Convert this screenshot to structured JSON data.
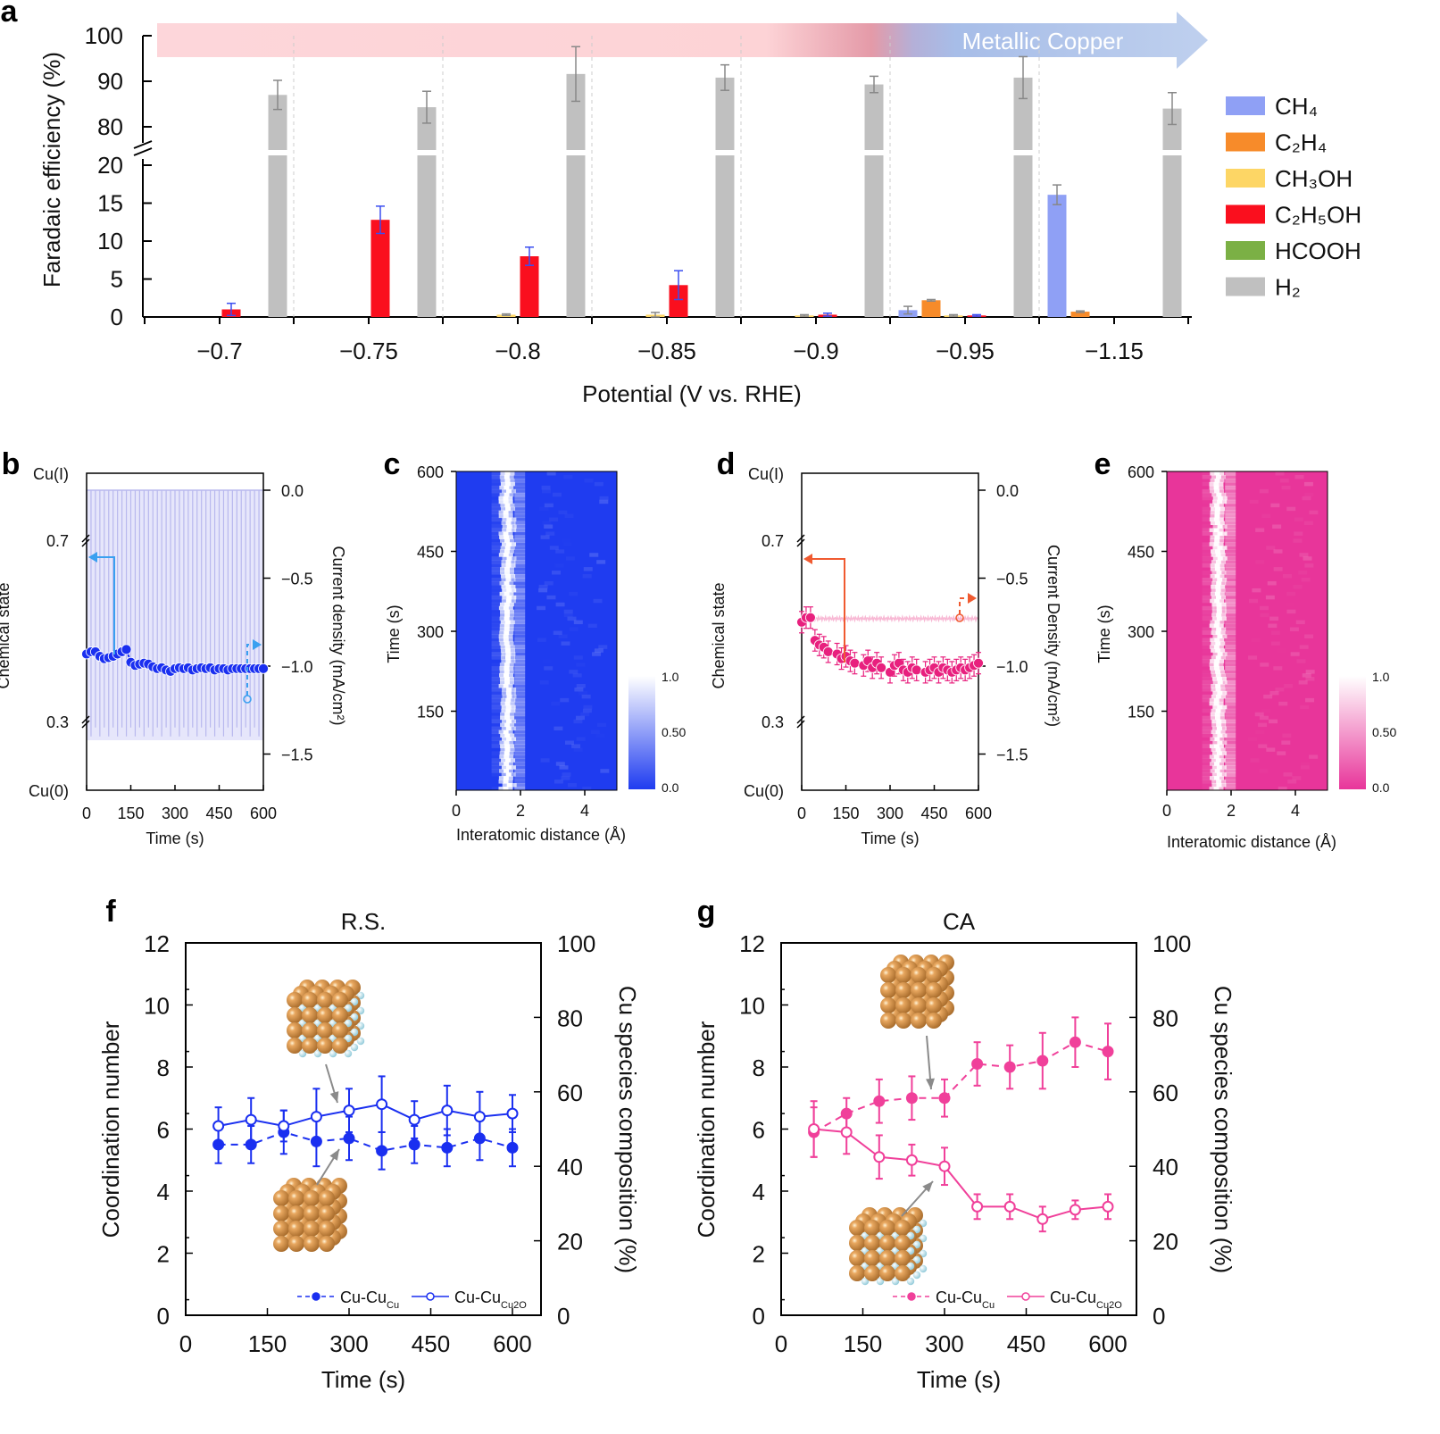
{
  "chart_data": [
    {
      "panel": "a",
      "type": "bar",
      "banner": "Metallic Copper",
      "xlabel": "Potential (V vs. RHE)",
      "ylabel": "Faradaic efficiency (%)",
      "y_break": [
        20,
        80
      ],
      "ylim": [
        0,
        100
      ],
      "yticks_lower": [
        "0",
        "5",
        "10",
        "15",
        "20"
      ],
      "yticks_upper": [
        "80",
        "90",
        "100"
      ],
      "categories": [
        "−0.7",
        "−0.75",
        "−0.8",
        "−0.85",
        "−0.9",
        "−0.95",
        "−1.15"
      ],
      "series": [
        {
          "name": "CH₄",
          "color": "#8fa0f5",
          "values": [
            0,
            0,
            0,
            0,
            0,
            0.9,
            16.1
          ],
          "errors": [
            0,
            0,
            0,
            0,
            0,
            0.5,
            1.3
          ]
        },
        {
          "name": "C₂H₄",
          "color": "#f78b2a",
          "values": [
            0,
            0,
            0,
            0,
            0,
            2.2,
            0.7
          ],
          "errors": [
            0,
            0,
            0,
            0,
            0,
            0.1,
            0.1
          ]
        },
        {
          "name": "CH₃OH",
          "color": "#fdd665",
          "values": [
            0,
            0,
            0.3,
            0.3,
            0.2,
            0.2,
            0
          ],
          "errors": [
            0,
            0,
            0.1,
            0.3,
            0.1,
            0.1,
            0
          ]
        },
        {
          "name": "C₂H₅OH",
          "color": "#fa0f1e",
          "values": [
            1.0,
            12.8,
            8.0,
            4.2,
            0.3,
            0.2,
            0
          ],
          "errors": [
            0.8,
            1.8,
            1.2,
            1.9,
            0.2,
            0.1,
            0
          ]
        },
        {
          "name": "HCOOH",
          "color": "#7bb045",
          "values": [
            0,
            0,
            0,
            0,
            0,
            0,
            0
          ],
          "errors": [
            0,
            0,
            0,
            0,
            0,
            0,
            0
          ]
        },
        {
          "name": "H₂",
          "color": "#c0c0c0",
          "values": [
            87.0,
            84.3,
            91.6,
            90.8,
            89.3,
            90.8,
            84.0
          ],
          "errors": [
            3.2,
            3.5,
            6.0,
            2.8,
            1.8,
            4.6,
            3.5
          ]
        }
      ],
      "legend": "right"
    },
    {
      "panel": "b",
      "type": "scatter",
      "xlabel": "Time (s)",
      "ylabel": "Chemical state",
      "ylabel_right": "Current density (mA/cm²)",
      "xticks": [
        "0",
        "150",
        "300",
        "450",
        "600"
      ],
      "yticks_left": [
        "Cu(I)",
        "0.7",
        "0.3",
        "Cu(0)"
      ],
      "yticks_right": [
        "0.0",
        "−0.5",
        "−1.0",
        "−1.5"
      ],
      "current_pulses": {
        "high": 0.0,
        "low": -1.4,
        "period_s": 15
      },
      "chemical_state": {
        "t": [
          0,
          15,
          30,
          45,
          60,
          75,
          90,
          105,
          120,
          135,
          150,
          165,
          180,
          195,
          210,
          225,
          240,
          255,
          270,
          285,
          300,
          315,
          330,
          345,
          360,
          375,
          390,
          405,
          420,
          435,
          450,
          465,
          480,
          495,
          510,
          525,
          540,
          555,
          570,
          585,
          600
        ],
        "v": [
          0.45,
          0.455,
          0.455,
          0.445,
          0.44,
          0.442,
          0.445,
          0.45,
          0.455,
          0.46,
          0.432,
          0.425,
          0.428,
          0.43,
          0.428,
          0.422,
          0.418,
          0.42,
          0.415,
          0.412,
          0.418,
          0.42,
          0.418,
          0.42,
          0.415,
          0.418,
          0.42,
          0.418,
          0.42,
          0.415,
          0.418,
          0.418,
          0.415,
          0.418,
          0.418,
          0.418,
          0.418,
          0.418,
          0.418,
          0.418,
          0.418
        ]
      }
    },
    {
      "panel": "c",
      "type": "heatmap",
      "xlabel": "Interatomic distance (Å)",
      "ylabel": "Time (s)",
      "xticks": [
        "0",
        "2",
        "4"
      ],
      "yticks": [
        "600",
        "450",
        "300",
        "150"
      ],
      "colorbar": [
        "1.0",
        "0.50",
        "0.0"
      ],
      "colors": {
        "low": "#1f3cf0",
        "high": "#ffffff"
      },
      "peak_distance": 1.6
    },
    {
      "panel": "d",
      "type": "scatter",
      "xlabel": "Time (s)",
      "ylabel": "Chemical state",
      "ylabel_right": "Current Density (mA/cm²)",
      "xticks": [
        "0",
        "150",
        "300",
        "450",
        "600"
      ],
      "yticks_left": [
        "Cu(I)",
        "0.7",
        "0.3",
        "Cu(0)"
      ],
      "yticks_right": [
        "0.0",
        "−0.5",
        "−1.0",
        "−1.5"
      ],
      "current_density": -0.73,
      "chemical_state": {
        "t": [
          0,
          15,
          30,
          45,
          60,
          75,
          90,
          120,
          135,
          150,
          165,
          180,
          210,
          225,
          240,
          255,
          270,
          300,
          315,
          330,
          345,
          360,
          375,
          390,
          420,
          435,
          450,
          465,
          480,
          495,
          510,
          525,
          540,
          555,
          570,
          585,
          600
        ],
        "v": [
          0.52,
          0.53,
          0.53,
          0.48,
          0.47,
          0.465,
          0.455,
          0.45,
          0.44,
          0.445,
          0.435,
          0.43,
          0.425,
          0.435,
          0.42,
          0.43,
          0.42,
          0.41,
          0.425,
          0.43,
          0.415,
          0.41,
          0.42,
          0.415,
          0.41,
          0.415,
          0.42,
          0.41,
          0.42,
          0.415,
          0.41,
          0.415,
          0.42,
          0.415,
          0.42,
          0.425,
          0.43
        ]
      }
    },
    {
      "panel": "e",
      "type": "heatmap",
      "xlabel": "Interatomic distance (Å)",
      "ylabel": "Time (s)",
      "xticks": [
        "0",
        "2",
        "4"
      ],
      "yticks": [
        "600",
        "450",
        "300",
        "150"
      ],
      "colorbar": [
        "1.0",
        "0.50",
        "0.0"
      ],
      "colors": {
        "low": "#e8359a",
        "high": "#ffffff"
      },
      "peak_distance": 1.6
    },
    {
      "panel": "f",
      "type": "line",
      "title": "R.S.",
      "xlabel": "Time (s)",
      "ylabel": "Coordination number",
      "ylabel_right": "Cu species composition (%)",
      "xticks": [
        "0",
        "150",
        "300",
        "450",
        "600"
      ],
      "yticks": [
        "0",
        "2",
        "4",
        "6",
        "8",
        "10",
        "12"
      ],
      "yticks_right": [
        "0",
        "20",
        "40",
        "60",
        "80",
        "100"
      ],
      "color": "#1a2ff0",
      "x": [
        60,
        120,
        180,
        240,
        300,
        360,
        420,
        480,
        540,
        600
      ],
      "series": [
        {
          "name": "Cu-Cu",
          "sub": "Cu",
          "style": "dashed-filled",
          "values": [
            5.5,
            5.5,
            5.9,
            5.6,
            5.7,
            5.3,
            5.5,
            5.4,
            5.7,
            5.4
          ],
          "errors": [
            0.6,
            0.6,
            0.7,
            0.8,
            0.7,
            0.6,
            0.6,
            0.6,
            0.7,
            0.6
          ]
        },
        {
          "name": "Cu-Cu",
          "sub": "Cu2O",
          "style": "solid-open",
          "values": [
            6.1,
            6.3,
            6.1,
            6.4,
            6.6,
            6.8,
            6.3,
            6.6,
            6.4,
            6.5
          ],
          "errors": [
            0.6,
            0.7,
            0.5,
            0.9,
            0.7,
            0.9,
            0.6,
            0.8,
            0.8,
            0.6
          ]
        }
      ],
      "legend": "bottom-right"
    },
    {
      "panel": "g",
      "type": "line",
      "title": "CA",
      "xlabel": "Time (s)",
      "ylabel": "Coordination number",
      "ylabel_right": "Cu species composition (%)",
      "xticks": [
        "0",
        "150",
        "300",
        "450",
        "600"
      ],
      "yticks": [
        "0",
        "2",
        "4",
        "6",
        "8",
        "10",
        "12"
      ],
      "yticks_right": [
        "0",
        "20",
        "40",
        "60",
        "80",
        "100"
      ],
      "color": "#f0409a",
      "x": [
        60,
        120,
        180,
        240,
        300,
        360,
        420,
        480,
        540,
        600
      ],
      "series": [
        {
          "name": "Cu-Cu",
          "sub": "Cu",
          "style": "dashed-filled",
          "values": [
            5.9,
            6.5,
            6.9,
            7.0,
            7.0,
            8.1,
            8.0,
            8.2,
            8.8,
            8.5
          ],
          "errors": [
            0.8,
            0.5,
            0.7,
            0.7,
            0.6,
            0.7,
            0.7,
            0.9,
            0.8,
            0.9
          ]
        },
        {
          "name": "Cu-Cu",
          "sub": "Cu2O",
          "style": "solid-open",
          "values": [
            6.0,
            5.9,
            5.1,
            5.0,
            4.8,
            3.5,
            3.5,
            3.1,
            3.4,
            3.5
          ],
          "errors": [
            0.9,
            0.7,
            0.7,
            0.5,
            0.6,
            0.4,
            0.4,
            0.4,
            0.3,
            0.4
          ]
        }
      ],
      "legend": "bottom-right"
    }
  ],
  "panel_letters": [
    "a",
    "b",
    "c",
    "d",
    "e",
    "f",
    "g"
  ]
}
